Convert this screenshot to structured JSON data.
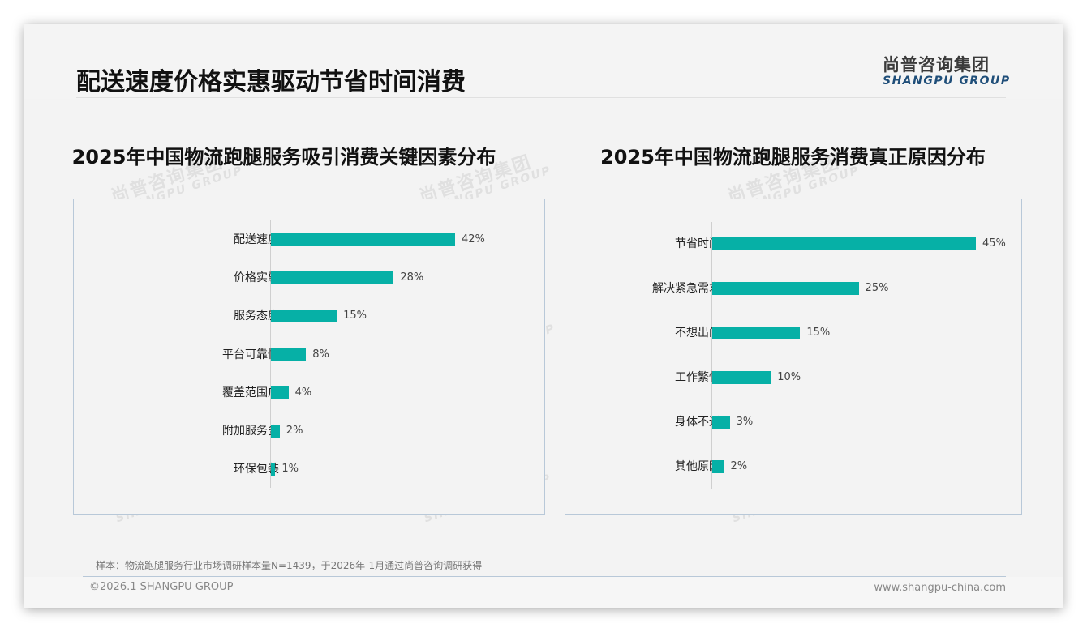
{
  "header": {
    "title": "配送速度价格实惠驱动节省时间消费",
    "logo_cn": "尚普咨询集团",
    "logo_en": "SHANGPU GROUP"
  },
  "watermark": {
    "cn": "尚普咨询集团",
    "en": "SHANGPU GROUP"
  },
  "colors": {
    "bar": "#06b0a6",
    "title": "#111111",
    "logo_en": "#1f4e79",
    "panel_border": "#b8c8d8"
  },
  "chart_data": [
    {
      "type": "bar",
      "orientation": "horizontal",
      "title": "2025年中国物流跑腿服务吸引消费关键因素分布",
      "categories": [
        "配送速度",
        "价格实惠",
        "服务态度",
        "平台可靠性",
        "覆盖范围广",
        "附加服务多",
        "环保包装"
      ],
      "values": [
        42,
        28,
        15,
        8,
        4,
        2,
        1
      ],
      "labels": [
        "42%",
        "28%",
        "15%",
        "8%",
        "4%",
        "2%",
        "1%"
      ],
      "unit": "%",
      "xlabel": "",
      "ylabel": "",
      "grid": false,
      "legend": "none",
      "color": "#06b0a6"
    },
    {
      "type": "bar",
      "orientation": "horizontal",
      "title": "2025年中国物流跑腿服务消费真正原因分布",
      "categories": [
        "节省时间",
        "解决紧急需求",
        "不想出门",
        "工作繁忙",
        "身体不适",
        "其他原因"
      ],
      "values": [
        45,
        25,
        15,
        10,
        3,
        2
      ],
      "labels": [
        "45%",
        "25%",
        "15%",
        "10%",
        "3%",
        "2%"
      ],
      "unit": "%",
      "xlabel": "",
      "ylabel": "",
      "grid": false,
      "legend": "none",
      "color": "#06b0a6"
    }
  ],
  "footer": {
    "note": "样本：物流跑腿服务行业市场调研样本量N=1439，于2026年-1月通过尚普咨询调研获得",
    "copyright": "©2026.1 SHANGPU GROUP",
    "website": "www.shangpu-china.com"
  }
}
